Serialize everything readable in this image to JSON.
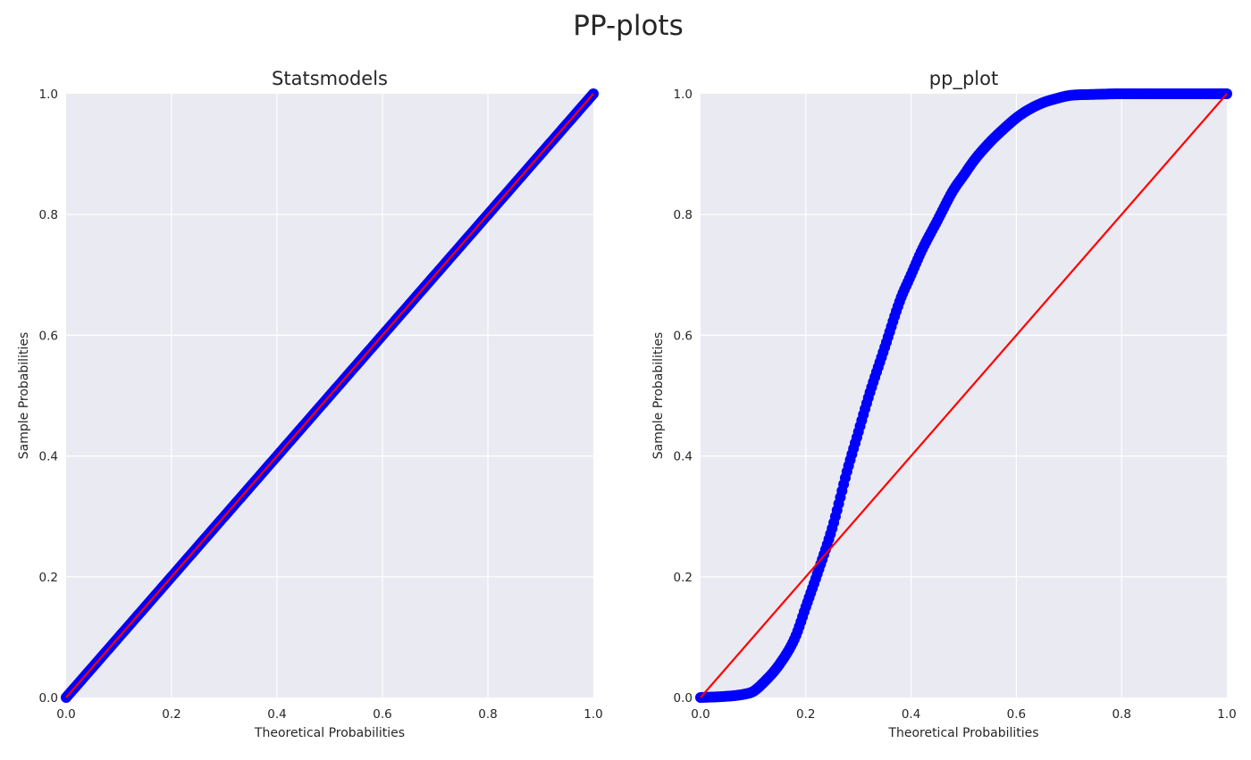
{
  "figure": {
    "title": "PP-plots",
    "background": "#ffffff",
    "axes_facecolor": "#eaeaf2",
    "grid_color": "#ffffff"
  },
  "chart_data": [
    {
      "type": "scatter",
      "title": "Statsmodels",
      "xlabel": "Theoretical Probabilities",
      "ylabel": "Sample Probabilities",
      "xlim": [
        0.0,
        1.0
      ],
      "ylim": [
        0.0,
        1.0
      ],
      "xticks": [
        "0.0",
        "0.2",
        "0.4",
        "0.6",
        "0.8",
        "1.0"
      ],
      "yticks": [
        "0.0",
        "0.2",
        "0.4",
        "0.6",
        "0.8",
        "1.0"
      ],
      "grid": true,
      "series": [
        {
          "kind": "scatter",
          "color": "#0000ff",
          "x": [
            0.0,
            0.1,
            0.2,
            0.3,
            0.4,
            0.5,
            0.6,
            0.7,
            0.8,
            0.9,
            1.0
          ],
          "y": [
            0.0,
            0.1,
            0.2,
            0.3,
            0.4,
            0.5,
            0.6,
            0.7,
            0.8,
            0.9,
            1.0
          ]
        },
        {
          "kind": "line",
          "color": "#ff0000",
          "x": [
            0.0,
            1.0
          ],
          "y": [
            0.0,
            1.0
          ]
        }
      ]
    },
    {
      "type": "scatter",
      "title": "pp_plot",
      "xlabel": "Theoretical Probabilities",
      "ylabel": "Sample Probabilities",
      "xlim": [
        0.0,
        1.0
      ],
      "ylim": [
        0.0,
        1.0
      ],
      "xticks": [
        "0.0",
        "0.2",
        "0.4",
        "0.6",
        "0.8",
        "1.0"
      ],
      "yticks": [
        "0.0",
        "0.2",
        "0.4",
        "0.6",
        "0.8",
        "1.0"
      ],
      "grid": true,
      "series": [
        {
          "kind": "scatter",
          "color": "#0000ff",
          "x": [
            0.0,
            0.05,
            0.08,
            0.1,
            0.12,
            0.15,
            0.18,
            0.2,
            0.22,
            0.25,
            0.28,
            0.3,
            0.32,
            0.35,
            0.38,
            0.4,
            0.42,
            0.45,
            0.48,
            0.5,
            0.52,
            0.55,
            0.58,
            0.6,
            0.62,
            0.65,
            0.68,
            0.7,
            0.75,
            0.8,
            0.9,
            1.0
          ],
          "y": [
            0.0,
            0.002,
            0.005,
            0.01,
            0.025,
            0.055,
            0.1,
            0.15,
            0.2,
            0.28,
            0.38,
            0.44,
            0.5,
            0.58,
            0.66,
            0.7,
            0.74,
            0.79,
            0.84,
            0.865,
            0.89,
            0.92,
            0.945,
            0.96,
            0.972,
            0.985,
            0.993,
            0.997,
            0.999,
            1.0,
            1.0,
            1.0
          ]
        },
        {
          "kind": "line",
          "color": "#ff0000",
          "x": [
            0.0,
            1.0
          ],
          "y": [
            0.0,
            1.0
          ]
        }
      ]
    }
  ]
}
